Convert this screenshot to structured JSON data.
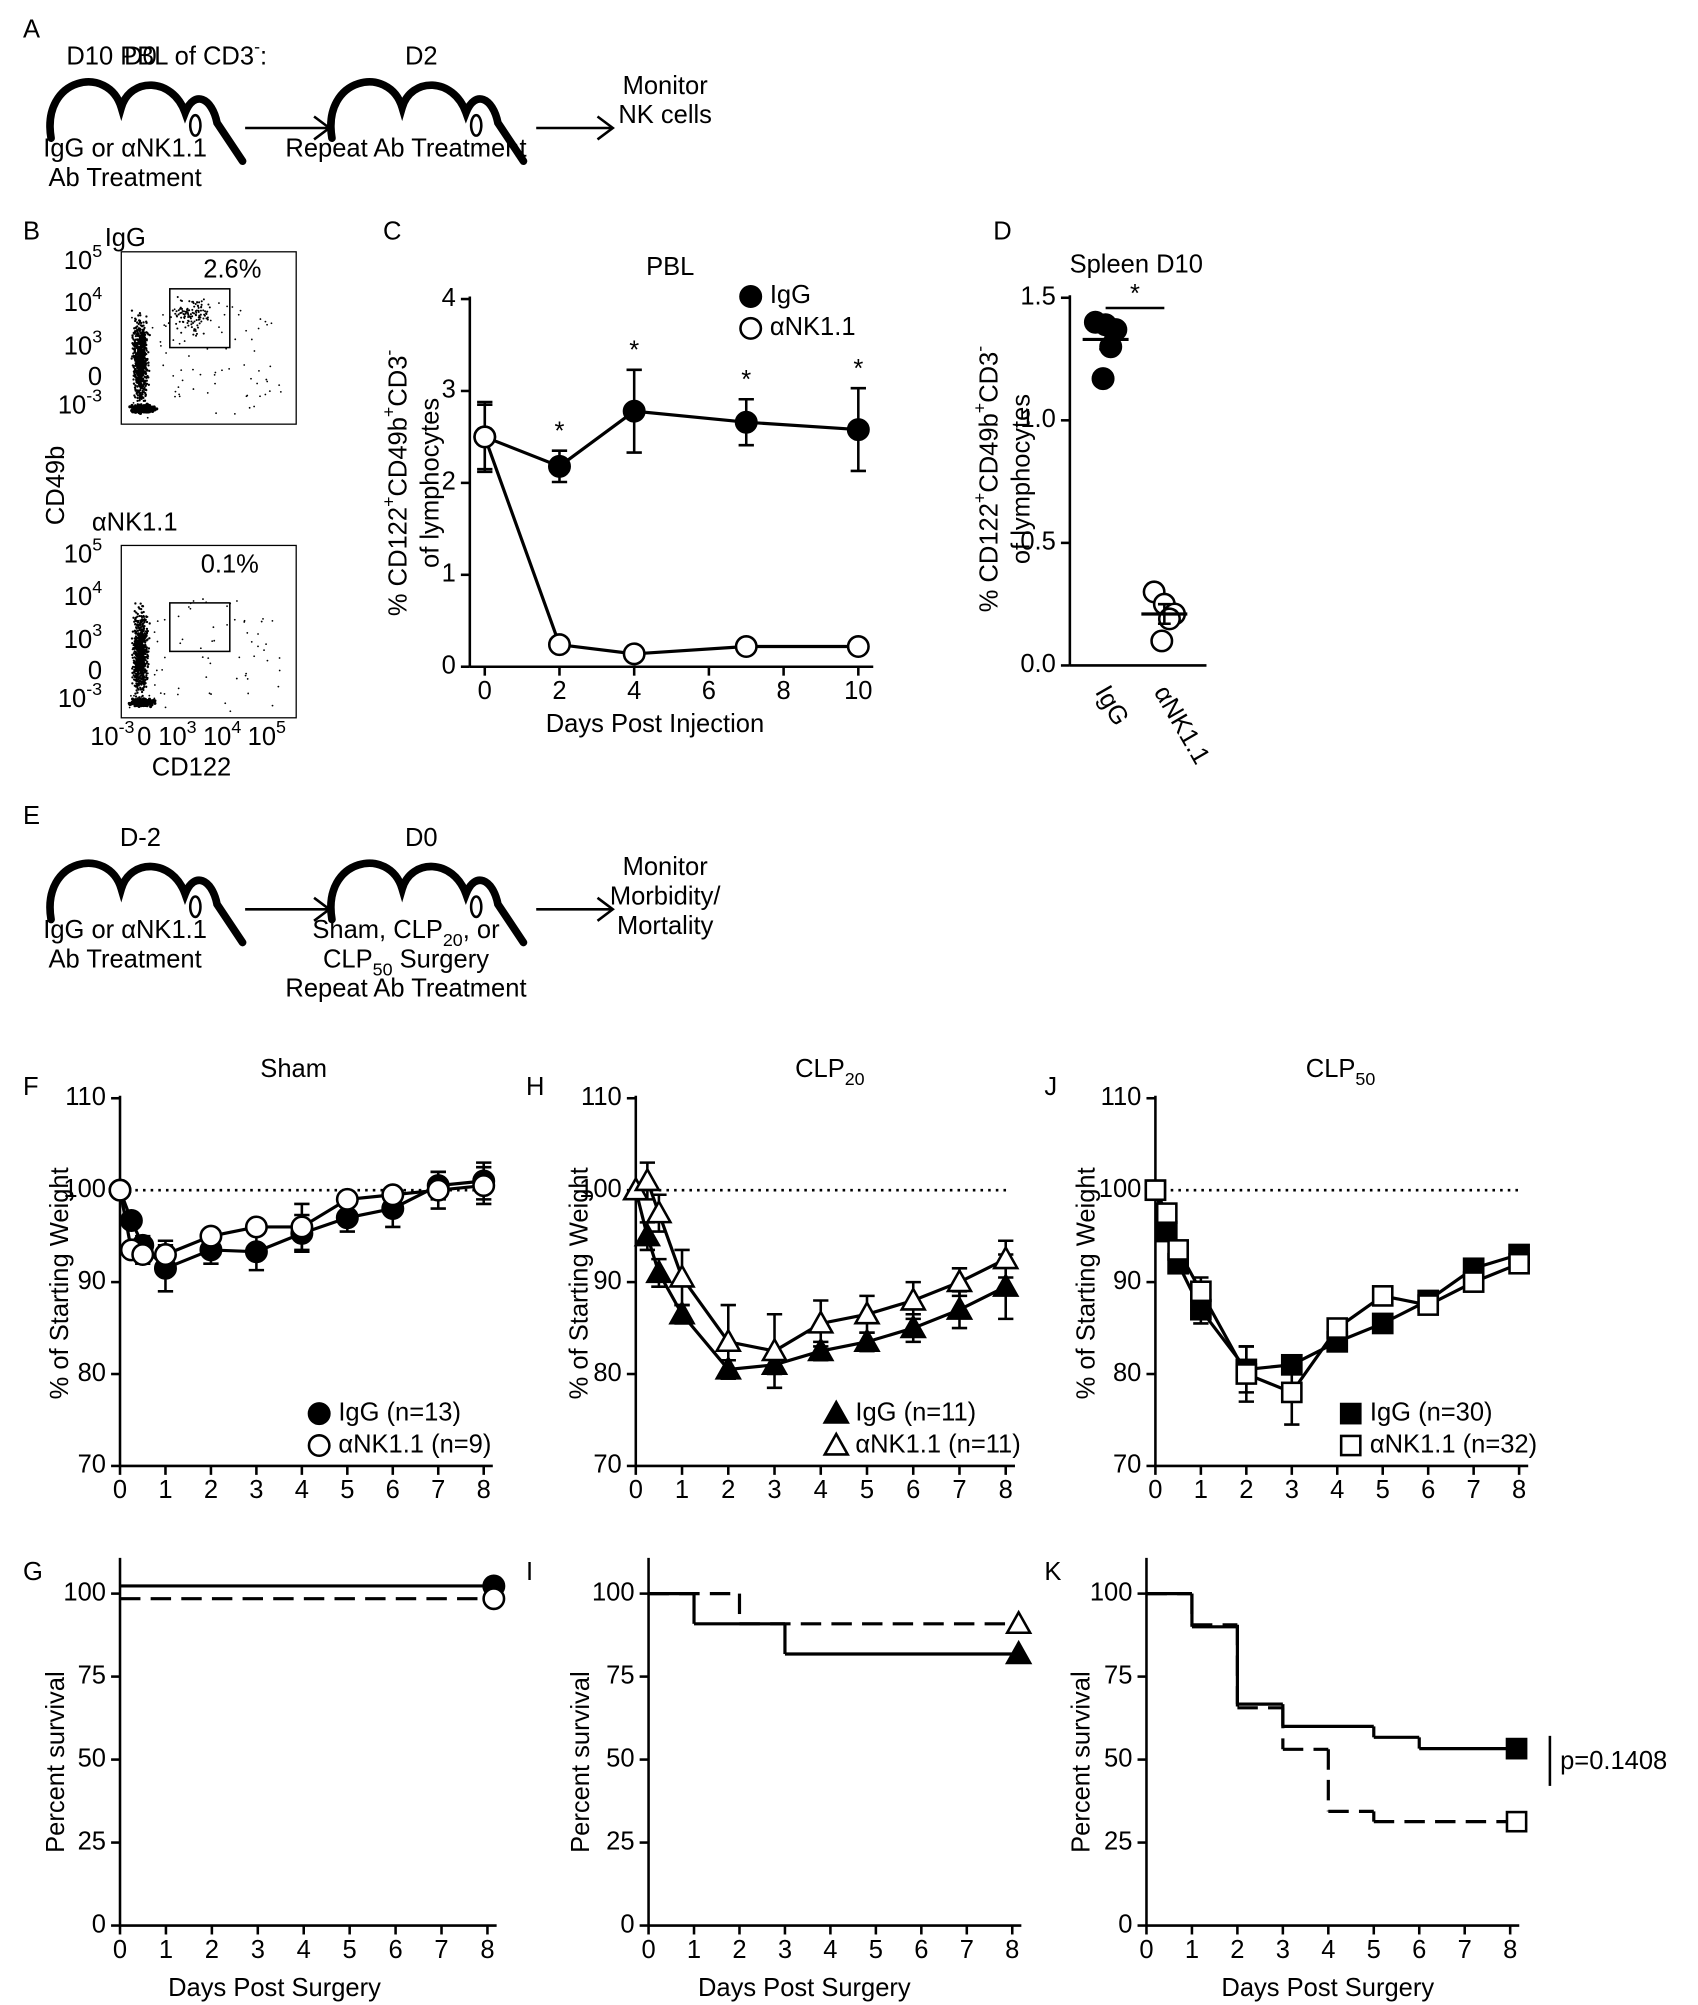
{
  "panel_labels": [
    "A",
    "B",
    "C",
    "D",
    "E",
    "F",
    "G",
    "H",
    "I",
    "J",
    "K"
  ],
  "diagram_a": {
    "steps": [
      {
        "day": "D0",
        "lines": [
          [
            "IgG or αNK1.1"
          ],
          [
            "Ab Treatment"
          ]
        ]
      },
      {
        "day": "D2",
        "lines": [
          [
            "Repeat Ab Treatment"
          ]
        ]
      }
    ],
    "end": [
      "Monitor",
      "NK cells"
    ]
  },
  "diagram_e": {
    "steps": [
      {
        "day": "D-2",
        "lines": [
          [
            "IgG or αNK1.1"
          ],
          [
            "Ab Treatment"
          ]
        ]
      },
      {
        "day": "D0",
        "lines": [
          [
            "Sham, CLP",
            "20",
            ", or"
          ],
          [
            "CLP",
            "50",
            " Surgery"
          ],
          [
            "Repeat Ab Treatment"
          ]
        ]
      }
    ],
    "end": [
      "Monitor",
      "Morbidity/",
      "Mortality"
    ]
  },
  "flow_b": {
    "title": [
      "D10 PBL of CD3",
      "-",
      ":"
    ],
    "ylabel": "CD49b",
    "xlabel": "CD122",
    "plots": [
      {
        "label": "IgG",
        "gate": "2.6%"
      },
      {
        "label": "αNK1.1",
        "gate": "0.1%"
      }
    ],
    "yticks": [
      [
        "10",
        "5"
      ],
      [
        "10",
        "4"
      ],
      [
        "10",
        "3"
      ],
      [
        "0"
      ],
      [
        "10",
        "-3"
      ]
    ],
    "xticks": [
      [
        "10",
        "-3"
      ],
      [
        "0"
      ],
      [
        "10",
        "3"
      ],
      [
        "10",
        "4"
      ],
      [
        "10",
        "5"
      ]
    ]
  },
  "chart_data": [
    {
      "type": "line",
      "title": "PBL",
      "xlabel": "Days Post Injection",
      "ylabel": [
        "% CD122",
        "+",
        "CD49b",
        "+",
        "CD3",
        "-"
      ],
      "ylabel2": "of lymphocytes",
      "x": [
        0,
        2,
        4,
        7,
        10
      ],
      "xlim": [
        -0.4,
        10.4
      ],
      "xticks": [
        0,
        2,
        4,
        6,
        8,
        10
      ],
      "ylim": [
        0,
        4
      ],
      "yticks": [
        0,
        1,
        2,
        3,
        4
      ],
      "series": [
        {
          "name": "IgG",
          "color": "#000000",
          "marker": "circle",
          "filled": true,
          "values": [
            2.5,
            2.18,
            2.78,
            2.66,
            2.58
          ],
          "errors": [
            0.35,
            0.17,
            0.45,
            0.25,
            0.45
          ]
        },
        {
          "name": "αNK1.1",
          "color": "#000000",
          "marker": "circle",
          "filled": false,
          "values": [
            2.5,
            0.24,
            0.14,
            0.22,
            0.22
          ],
          "errors": [
            0.38,
            0.03,
            0.02,
            0.03,
            0.03
          ]
        }
      ],
      "annotations": [
        {
          "x": 2,
          "text": "*"
        },
        {
          "x": 4,
          "text": "*"
        },
        {
          "x": 7,
          "text": "*"
        },
        {
          "x": 10,
          "text": "*"
        }
      ]
    },
    {
      "type": "strip",
      "title": "Spleen D10",
      "ylabel": [
        "% CD122",
        "+",
        "CD49b",
        "+",
        "CD3",
        "-"
      ],
      "ylabel2": "of lymphocytes",
      "categories": [
        "IgG",
        "αNK1.1"
      ],
      "ylim": [
        0,
        1.5
      ],
      "yticks": [
        {
          "value": 0,
          "label": "0.0"
        },
        {
          "value": 0.5,
          "label": "0.5"
        },
        {
          "value": 1,
          "label": "1.0"
        },
        {
          "value": 1.5,
          "label": "1.5"
        }
      ],
      "values": [
        [
          1.4,
          1.39,
          1.37,
          1.3,
          1.17
        ],
        [
          0.3,
          0.25,
          0.21,
          0.19,
          0.1
        ]
      ],
      "filled": [
        true,
        false
      ],
      "means": [
        1.33,
        0.21
      ],
      "sem": [
        0.04,
        0.04
      ],
      "color": "#000000",
      "annotations": [
        {
          "text": "*"
        }
      ]
    },
    {
      "type": "line",
      "title": "Sham",
      "ylabel": "% of Starting Weight",
      "x": [
        0,
        0.25,
        0.5,
        1,
        2,
        3,
        4,
        5,
        6,
        7,
        8
      ],
      "xlim": [
        0,
        8.2
      ],
      "xticks": [
        0,
        1,
        2,
        3,
        4,
        5,
        6,
        7,
        8
      ],
      "ylim": [
        70,
        110
      ],
      "yticks": [
        70,
        80,
        90,
        100,
        110
      ],
      "ref_line": 100,
      "series": [
        {
          "name": "IgG (n=13)",
          "color": "#000000",
          "marker": "circle",
          "filled": true,
          "values": [
            100,
            96.7,
            94,
            91.5,
            93.5,
            93.3,
            95.3,
            97,
            98,
            100.5,
            101
          ],
          "errors": [
            0,
            0,
            1,
            2.5,
            1.5,
            2,
            2,
            1.5,
            2,
            1.5,
            2
          ]
        },
        {
          "name": "αNK1.1 (n=9)",
          "color": "#000000",
          "marker": "circle",
          "filled": false,
          "values": [
            100,
            93.5,
            93,
            93,
            95,
            96,
            96,
            99,
            99.5,
            100,
            100.5
          ],
          "errors": [
            0,
            0,
            1,
            1.5,
            0.5,
            0.5,
            2.5,
            0.5,
            0.5,
            2,
            2
          ]
        }
      ]
    },
    {
      "type": "line",
      "title": [
        "CLP",
        "20"
      ],
      "ylabel": "% of Starting Weight",
      "x": [
        0,
        0.25,
        0.5,
        1,
        2,
        3,
        4,
        5,
        6,
        7,
        8
      ],
      "xlim": [
        0,
        8.2
      ],
      "xticks": [
        0,
        1,
        2,
        3,
        4,
        5,
        6,
        7,
        8
      ],
      "ylim": [
        70,
        110
      ],
      "yticks": [
        70,
        80,
        90,
        100,
        110
      ],
      "ref_line": 100,
      "series": [
        {
          "name": "IgG (n=11)",
          "color": "#000000",
          "marker": "triangle",
          "filled": true,
          "values": [
            100,
            95,
            91,
            86.5,
            80.5,
            81,
            82.5,
            83.5,
            85,
            87,
            89.5
          ],
          "errors": [
            0,
            1.5,
            1.5,
            1,
            1,
            1,
            1,
            1,
            1.5,
            2,
            3.5
          ]
        },
        {
          "name": "αNK1.1 (n=11)",
          "color": "#000000",
          "marker": "triangle",
          "filled": false,
          "values": [
            100,
            101,
            97.5,
            90.5,
            83.5,
            82.5,
            85.5,
            86.5,
            88,
            90,
            92.5
          ],
          "errors": [
            0,
            2,
            2,
            3,
            4,
            4,
            2.5,
            2,
            2,
            1.5,
            2
          ]
        }
      ]
    },
    {
      "type": "line",
      "title": [
        "CLP",
        "50"
      ],
      "ylabel": "% of Starting Weight",
      "x": [
        0,
        0.25,
        0.5,
        1,
        2,
        3,
        4,
        5,
        6,
        7,
        8
      ],
      "xlim": [
        0,
        8.2
      ],
      "xticks": [
        0,
        1,
        2,
        3,
        4,
        5,
        6,
        7,
        8
      ],
      "ylim": [
        70,
        110
      ],
      "yticks": [
        70,
        80,
        90,
        100,
        110
      ],
      "ref_line": 100,
      "series": [
        {
          "name": "IgG (n=30)",
          "color": "#000000",
          "marker": "square",
          "filled": true,
          "values": [
            100,
            95.5,
            92,
            87,
            80.5,
            81,
            83.5,
            85.5,
            88,
            91.5,
            93
          ],
          "errors": [
            0,
            1,
            1,
            1.5,
            2.5,
            1,
            1,
            0.5,
            1,
            1,
            1
          ]
        },
        {
          "name": "αNK1.1 (n=32)",
          "color": "#000000",
          "marker": "square",
          "filled": false,
          "values": [
            100,
            97.5,
            93.5,
            89,
            80,
            78,
            85,
            88.5,
            87.5,
            90,
            92
          ],
          "errors": [
            0,
            1,
            1,
            1.5,
            3,
            3.5,
            1,
            0.5,
            1,
            1,
            1
          ]
        }
      ]
    },
    {
      "type": "step",
      "xlabel": "Days Post Surgery",
      "ylabel": "Percent survival",
      "xlim": [
        0,
        8.2
      ],
      "xticks": [
        0,
        1,
        2,
        3,
        4,
        5,
        6,
        7,
        8
      ],
      "ylim": [
        0,
        110
      ],
      "yticks": [
        0,
        25,
        50,
        75,
        100
      ],
      "series": [
        {
          "color": "#000000",
          "marker": "circle",
          "filled": true,
          "dashed": false,
          "x": [
            0,
            8
          ],
          "values": [
            100,
            100
          ]
        },
        {
          "color": "#000000",
          "marker": "circle",
          "filled": false,
          "dashed": true,
          "x": [
            0,
            8
          ],
          "values": [
            100,
            100
          ]
        }
      ]
    },
    {
      "type": "step",
      "xlabel": "Days Post Surgery",
      "ylabel": "Percent survival",
      "xlim": [
        0,
        8.2
      ],
      "xticks": [
        0,
        1,
        2,
        3,
        4,
        5,
        6,
        7,
        8
      ],
      "ylim": [
        0,
        110
      ],
      "yticks": [
        0,
        25,
        50,
        75,
        100
      ],
      "series": [
        {
          "color": "#000000",
          "marker": "triangle",
          "filled": true,
          "dashed": false,
          "x": [
            0,
            1,
            3,
            8
          ],
          "values": [
            100,
            90.9,
            81.8,
            81.8
          ]
        },
        {
          "color": "#000000",
          "marker": "triangle",
          "filled": false,
          "dashed": true,
          "x": [
            0,
            2,
            8
          ],
          "values": [
            100,
            90.9,
            90.9
          ]
        }
      ]
    },
    {
      "type": "step",
      "xlabel": "Days Post Surgery",
      "ylabel": "Percent survival",
      "xlim": [
        0,
        8.2
      ],
      "xticks": [
        0,
        1,
        2,
        3,
        4,
        5,
        6,
        7,
        8
      ],
      "ylim": [
        0,
        110
      ],
      "yticks": [
        0,
        25,
        50,
        75,
        100
      ],
      "series": [
        {
          "color": "#000000",
          "marker": "square",
          "filled": true,
          "dashed": false,
          "x": [
            0,
            1,
            2,
            3,
            5,
            6,
            8
          ],
          "values": [
            100,
            90,
            66.7,
            60,
            56.7,
            53.3,
            53.3
          ]
        },
        {
          "color": "#000000",
          "marker": "square",
          "filled": false,
          "dashed": true,
          "x": [
            0,
            1,
            2,
            3,
            4,
            5,
            8
          ],
          "values": [
            100,
            90.6,
            65.6,
            53.1,
            34.4,
            31.3,
            31.3
          ]
        }
      ],
      "annotations": [
        {
          "text": "p=0.1408"
        }
      ]
    }
  ]
}
